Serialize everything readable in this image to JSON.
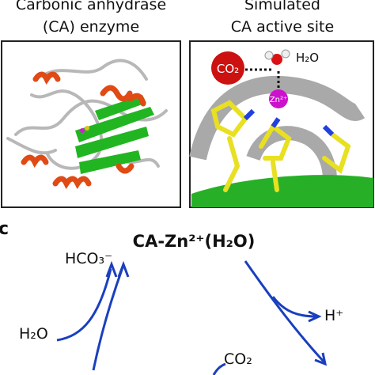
{
  "panels": [
    {
      "title_line1": "Carbonic anhydrase",
      "title_line2": "(CA) enzyme"
    },
    {
      "title_line1": "Simulated",
      "title_line2": "CA active site",
      "labels": {
        "co2": "CO₂",
        "water": "H₂O",
        "zinc": "Zn²⁺"
      }
    }
  ],
  "scheme": {
    "panel_letter": "c",
    "center": "CA-Zn²⁺(H₂O)",
    "product_out": "HCO₃⁻",
    "water_in": "H₂O",
    "proton_out": "H⁺",
    "co2_in": "CO₂"
  }
}
